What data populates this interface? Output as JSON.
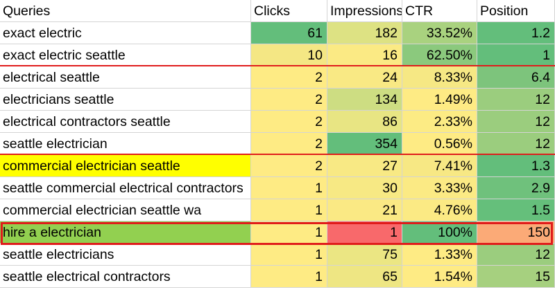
{
  "colors": {
    "group_divider": "#e01b1b",
    "yellow_highlight": "#ffff00",
    "green_highlight": "#92d050"
  },
  "headers": {
    "queries": "Queries",
    "clicks": "Clicks",
    "impressions": "Impressions",
    "ctr": "CTR",
    "position": "Position"
  },
  "rows": [
    {
      "query": "exact electric",
      "clicks": "61",
      "impressions": "182",
      "ctr": "33.52%",
      "position": "1.2",
      "bg": {
        "clicks": "#63be7b",
        "impressions": "#dde283",
        "ctr": "#a9d27f",
        "position": "#63be7b"
      }
    },
    {
      "query": "exact electric seattle",
      "clicks": "10",
      "impressions": "16",
      "ctr": "62.50%",
      "position": "1",
      "bg": {
        "clicks": "#f4e784",
        "impressions": "#fbea84",
        "ctr": "#8bc97d",
        "position": "#63be7b"
      }
    },
    {
      "query": "electrical seattle",
      "clicks": "2",
      "impressions": "24",
      "ctr": "8.33%",
      "position": "6.4",
      "bg": {
        "clicks": "#feeb84",
        "impressions": "#f9e984",
        "ctr": "#f6e884",
        "position": "#7dc47c"
      }
    },
    {
      "query": "electricians seattle",
      "clicks": "2",
      "impressions": "134",
      "ctr": "1.49%",
      "position": "12",
      "bg": {
        "clicks": "#feeb84",
        "impressions": "#cddd82",
        "ctr": "#feeb84",
        "position": "#9bcd7e"
      }
    },
    {
      "query": "electrical contractors seattle",
      "clicks": "2",
      "impressions": "86",
      "ctr": "2.33%",
      "position": "12",
      "bg": {
        "clicks": "#feeb84",
        "impressions": "#e8e583",
        "ctr": "#fceb84",
        "position": "#9bcd7e"
      }
    },
    {
      "query": "seattle electrician",
      "clicks": "2",
      "impressions": "354",
      "ctr": "0.56%",
      "position": "12",
      "bg": {
        "clicks": "#feeb84",
        "impressions": "#63be7b",
        "ctr": "#feeb84",
        "position": "#9bcd7e"
      }
    },
    {
      "query": "commercial electrician seattle",
      "clicks": "2",
      "impressions": "27",
      "ctr": "7.41%",
      "position": "1.3",
      "bg": {
        "query": "#ffff00",
        "clicks": "#feeb84",
        "impressions": "#f8e984",
        "ctr": "#f7e884",
        "position": "#63be7b"
      }
    },
    {
      "query": "seattle commercial electrical contractors",
      "clicks": "1",
      "impressions": "30",
      "ctr": "3.33%",
      "position": "2.9",
      "bg": {
        "clicks": "#feeb84",
        "impressions": "#f7e984",
        "ctr": "#fbea84",
        "position": "#6fc17c"
      }
    },
    {
      "query": "commercial electrician seattle wa",
      "clicks": "1",
      "impressions": "21",
      "ctr": "4.76%",
      "position": "1.5",
      "bg": {
        "clicks": "#feeb84",
        "impressions": "#fae984",
        "ctr": "#fbea84",
        "position": "#65bf7b"
      }
    },
    {
      "query": "hire a electrician",
      "clicks": "1",
      "impressions": "1",
      "ctr": "100%",
      "position": "150",
      "bg": {
        "query": "#92d050",
        "clicks": "#feeb84",
        "impressions": "#f8696b",
        "ctr": "#63be7b",
        "position": "#fbaa77"
      }
    },
    {
      "query": "seattle electricians",
      "clicks": "1",
      "impressions": "75",
      "ctr": "1.33%",
      "position": "12",
      "bg": {
        "clicks": "#feeb84",
        "impressions": "#ebe683",
        "ctr": "#feeb84",
        "position": "#9bcd7e"
      }
    },
    {
      "query": "seattle electrical contractors",
      "clicks": "1",
      "impressions": "65",
      "ctr": "1.54%",
      "position": "15",
      "bg": {
        "clicks": "#feeb84",
        "impressions": "#eee683",
        "ctr": "#feeb84",
        "position": "#a6d07f"
      }
    }
  ]
}
